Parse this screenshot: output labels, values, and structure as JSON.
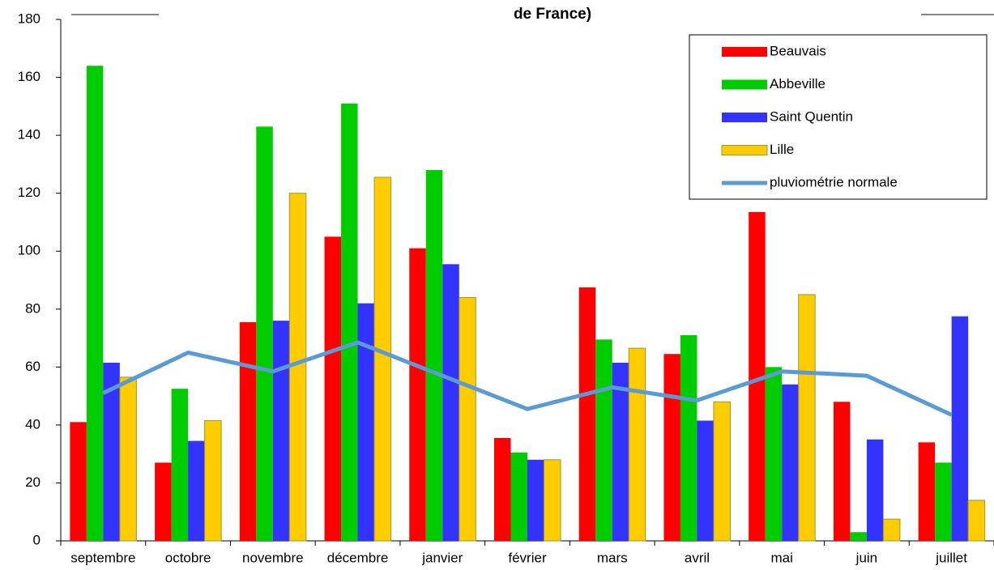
{
  "chart_data": {
    "type": "bar",
    "title": "de France)",
    "categories": [
      "septembre",
      "octobre",
      "novembre",
      "décembre",
      "janvier",
      "février",
      "mars",
      "avril",
      "mai",
      "juin",
      "juillet"
    ],
    "series": [
      {
        "name": "Beauvais",
        "color": "#ff0000",
        "values": [
          41,
          27,
          75.5,
          105,
          101,
          35.5,
          87.5,
          64.5,
          113.5,
          48,
          34
        ]
      },
      {
        "name": "Abbeville",
        "color": "#00cc00",
        "values": [
          164,
          52.5,
          143,
          151,
          128,
          30.5,
          69.5,
          71,
          60,
          3,
          27
        ]
      },
      {
        "name": "Saint Quentin",
        "color": "#3333ff",
        "values": [
          61.5,
          34.5,
          76,
          82,
          95.5,
          28,
          61.5,
          41.5,
          54,
          35,
          77.5
        ]
      },
      {
        "name": "Lille",
        "color": "#ffcc00",
        "values": [
          56.5,
          41.5,
          120,
          125.5,
          84,
          28,
          66.5,
          48,
          85,
          7.5,
          14
        ]
      },
      {
        "name": "pluviométrie normale",
        "color": "#5b9bd5",
        "type": "line",
        "values": [
          51,
          65,
          58.5,
          68.5,
          57,
          45.5,
          53,
          48.5,
          58.5,
          57,
          43.5
        ]
      }
    ],
    "ylim": [
      0,
      180
    ],
    "yticks": [
      0,
      20,
      40,
      60,
      80,
      100,
      120,
      140,
      160,
      180
    ]
  }
}
